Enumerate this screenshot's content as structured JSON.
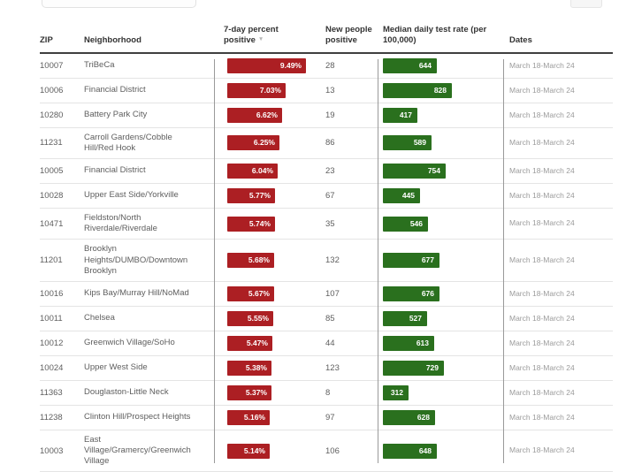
{
  "colors": {
    "bar_red": "#ac1f23",
    "bar_green": "#2a701e",
    "bar_text": "#ffffff"
  },
  "icons": {
    "sort_descending": "▼"
  },
  "table": {
    "columns": [
      {
        "key": "zip",
        "label": "ZIP"
      },
      {
        "key": "neighborhood",
        "label": "Neighborhood"
      },
      {
        "key": "pct",
        "label": "7-day percent positive",
        "sorted": "descending"
      },
      {
        "key": "new_positive",
        "label": "New people positive"
      },
      {
        "key": "test_rate",
        "label": "Median daily test rate (per 100,000)"
      },
      {
        "key": "dates",
        "label": "Dates"
      }
    ],
    "rows": [
      {
        "zip": "10007",
        "neighborhood": "TriBeCa",
        "pct": "9.49%",
        "pct_value": 9.49,
        "new_positive": 28,
        "test_rate": 644,
        "dates": "March 18-March 24"
      },
      {
        "zip": "10006",
        "neighborhood": "Financial District",
        "pct": "7.03%",
        "pct_value": 7.03,
        "new_positive": 13,
        "test_rate": 828,
        "dates": "March 18-March 24"
      },
      {
        "zip": "10280",
        "neighborhood": "Battery Park City",
        "pct": "6.62%",
        "pct_value": 6.62,
        "new_positive": 19,
        "test_rate": 417,
        "dates": "March 18-March 24"
      },
      {
        "zip": "11231",
        "neighborhood": "Carroll Gardens/Cobble Hill/Red Hook",
        "pct": "6.25%",
        "pct_value": 6.25,
        "new_positive": 86,
        "test_rate": 589,
        "dates": "March 18-March 24"
      },
      {
        "zip": "10005",
        "neighborhood": "Financial District",
        "pct": "6.04%",
        "pct_value": 6.04,
        "new_positive": 23,
        "test_rate": 754,
        "dates": "March 18-March 24"
      },
      {
        "zip": "10028",
        "neighborhood": "Upper East Side/Yorkville",
        "pct": "5.77%",
        "pct_value": 5.77,
        "new_positive": 67,
        "test_rate": 445,
        "dates": "March 18-March 24"
      },
      {
        "zip": "10471",
        "neighborhood": "Fieldston/North Riverdale/Riverdale",
        "pct": "5.74%",
        "pct_value": 5.74,
        "new_positive": 35,
        "test_rate": 546,
        "dates": "March 18-March 24"
      },
      {
        "zip": "11201",
        "neighborhood": "Brooklyn Heights/DUMBO/Downtown Brooklyn",
        "pct": "5.68%",
        "pct_value": 5.68,
        "new_positive": 132,
        "test_rate": 677,
        "dates": "March 18-March 24"
      },
      {
        "zip": "10016",
        "neighborhood": "Kips Bay/Murray Hill/NoMad",
        "pct": "5.67%",
        "pct_value": 5.67,
        "new_positive": 107,
        "test_rate": 676,
        "dates": "March 18-March 24"
      },
      {
        "zip": "10011",
        "neighborhood": "Chelsea",
        "pct": "5.55%",
        "pct_value": 5.55,
        "new_positive": 85,
        "test_rate": 527,
        "dates": "March 18-March 24"
      },
      {
        "zip": "10012",
        "neighborhood": "Greenwich Village/SoHo",
        "pct": "5.47%",
        "pct_value": 5.47,
        "new_positive": 44,
        "test_rate": 613,
        "dates": "March 18-March 24"
      },
      {
        "zip": "10024",
        "neighborhood": "Upper West Side",
        "pct": "5.38%",
        "pct_value": 5.38,
        "new_positive": 123,
        "test_rate": 729,
        "dates": "March 18-March 24"
      },
      {
        "zip": "11363",
        "neighborhood": "Douglaston-Little Neck",
        "pct": "5.37%",
        "pct_value": 5.37,
        "new_positive": 8,
        "test_rate": 312,
        "dates": "March 18-March 24"
      },
      {
        "zip": "11238",
        "neighborhood": "Clinton Hill/Prospect Heights",
        "pct": "5.16%",
        "pct_value": 5.16,
        "new_positive": 97,
        "test_rate": 628,
        "dates": "March 18-March 24"
      },
      {
        "zip": "10003",
        "neighborhood": "East Village/Gramercy/Greenwich Village",
        "pct": "5.14%",
        "pct_value": 5.14,
        "new_positive": 106,
        "test_rate": 648,
        "dates": "March 18-March 24"
      }
    ]
  },
  "chart_data": {
    "type": "table",
    "title": "",
    "columns": [
      "ZIP",
      "Neighborhood",
      "7-day percent positive",
      "New people positive",
      "Median daily test rate (per 100,000)",
      "Dates"
    ],
    "rows": [
      [
        "10007",
        "TriBeCa",
        9.49,
        28,
        644,
        "March 18-March 24"
      ],
      [
        "10006",
        "Financial District",
        7.03,
        13,
        828,
        "March 18-March 24"
      ],
      [
        "10280",
        "Battery Park City",
        6.62,
        19,
        417,
        "March 18-March 24"
      ],
      [
        "11231",
        "Carroll Gardens/Cobble Hill/Red Hook",
        6.25,
        86,
        589,
        "March 18-March 24"
      ],
      [
        "10005",
        "Financial District",
        6.04,
        23,
        754,
        "March 18-March 24"
      ],
      [
        "10028",
        "Upper East Side/Yorkville",
        5.77,
        67,
        445,
        "March 18-March 24"
      ],
      [
        "10471",
        "Fieldston/North Riverdale/Riverdale",
        5.74,
        35,
        546,
        "March 18-March 24"
      ],
      [
        "11201",
        "Brooklyn Heights/DUMBO/Downtown Brooklyn",
        5.68,
        132,
        677,
        "March 18-March 24"
      ],
      [
        "10016",
        "Kips Bay/Murray Hill/NoMad",
        5.67,
        107,
        676,
        "March 18-March 24"
      ],
      [
        "10011",
        "Chelsea",
        5.55,
        85,
        527,
        "March 18-March 24"
      ],
      [
        "10012",
        "Greenwich Village/SoHo",
        5.47,
        44,
        613,
        "March 18-March 24"
      ],
      [
        "10024",
        "Upper West Side",
        5.38,
        123,
        729,
        "March 18-March 24"
      ],
      [
        "11363",
        "Douglaston-Little Neck",
        5.37,
        8,
        312,
        "March 18-March 24"
      ],
      [
        "11238",
        "Clinton Hill/Prospect Heights",
        5.16,
        97,
        628,
        "March 18-March 24"
      ],
      [
        "10003",
        "East Village/Gramercy/Greenwich Village",
        5.14,
        106,
        648,
        "March 18-March 24"
      ]
    ],
    "bar_columns": [
      {
        "column": "7-day percent positive",
        "color": "#ac1f23",
        "max_value": 9.49
      },
      {
        "column": "Median daily test rate (per 100,000)",
        "color": "#2a701e",
        "max_value": 828
      }
    ]
  }
}
